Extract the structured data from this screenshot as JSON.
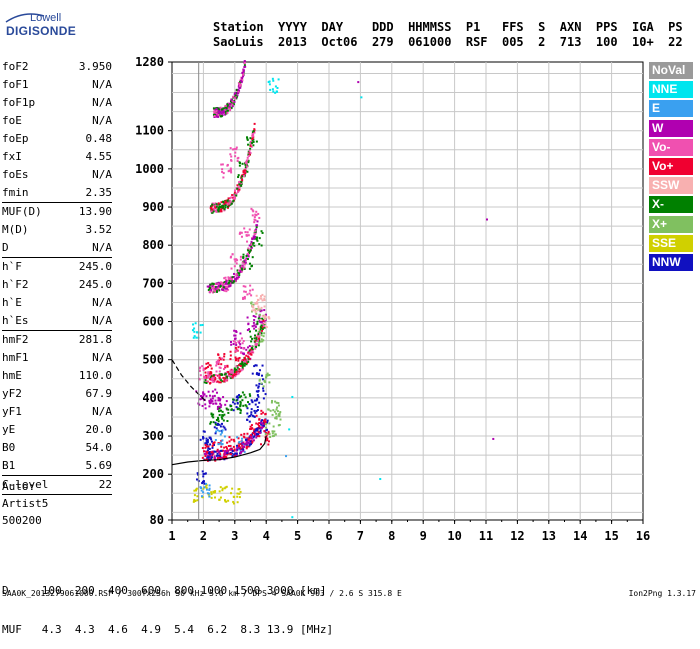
{
  "logo": {
    "line1": "Lowell",
    "line2": "DIGISONDE"
  },
  "header": {
    "cols": [
      "Station",
      "YYYY",
      "DAY",
      "DDD",
      "HHMMSS",
      "P1",
      "FFS",
      "S",
      "AXN",
      "PPS",
      "IGA",
      "PS"
    ],
    "vals": [
      "SaoLuis",
      "2013",
      "Oct06",
      "279",
      "061000",
      "RSF",
      "005",
      "2",
      "713",
      "100",
      "10+",
      "22"
    ]
  },
  "params": [
    {
      "name": "foF2",
      "value": "3.950"
    },
    {
      "name": "foF1",
      "value": "N/A"
    },
    {
      "name": "foF1p",
      "value": "N/A"
    },
    {
      "name": "foE",
      "value": "N/A"
    },
    {
      "name": "foEp",
      "value": "0.48"
    },
    {
      "name": "fxI",
      "value": "4.55"
    },
    {
      "name": "foEs",
      "value": "N/A"
    },
    {
      "name": "fmin",
      "value": "2.35"
    },
    {
      "sep": true
    },
    {
      "name": "MUF(D)",
      "value": "13.90"
    },
    {
      "name": "M(D)",
      "value": "3.52"
    },
    {
      "name": "D",
      "value": "N/A"
    },
    {
      "sep": true
    },
    {
      "name": "h`F",
      "value": "245.0"
    },
    {
      "name": "h`F2",
      "value": "245.0"
    },
    {
      "name": "h`E",
      "value": "N/A"
    },
    {
      "name": "h`Es",
      "value": "N/A"
    },
    {
      "sep": true
    },
    {
      "name": "hmF2",
      "value": "281.8"
    },
    {
      "name": "hmF1",
      "value": "N/A"
    },
    {
      "name": "hmE",
      "value": "110.0"
    },
    {
      "name": "yF2",
      "value": "67.9"
    },
    {
      "name": "yF1",
      "value": "N/A"
    },
    {
      "name": "yE",
      "value": "20.0"
    },
    {
      "name": "B0",
      "value": "54.0"
    },
    {
      "name": "B1",
      "value": "5.69"
    },
    {
      "sep": true
    },
    {
      "name": "C-level",
      "value": "22"
    },
    {
      "sep": true
    }
  ],
  "auto": {
    "line1": "Auto:",
    "line2": "Artist5",
    "line3": "500200"
  },
  "legend": [
    {
      "label": "NoVal",
      "color": "#9a9a9a"
    },
    {
      "label": "NNE",
      "color": "#00e5ee"
    },
    {
      "label": "E",
      "color": "#3aa0f0"
    },
    {
      "label": "W",
      "color": "#b000b0"
    },
    {
      "label": "Vo-",
      "color": "#f050b0"
    },
    {
      "label": "Vo+",
      "color": "#f00030"
    },
    {
      "label": "SSW",
      "color": "#f8b0b0"
    },
    {
      "label": "X-",
      "color": "#008000"
    },
    {
      "label": "X+",
      "color": "#80c060"
    },
    {
      "label": "SSE",
      "color": "#d0d000"
    },
    {
      "label": "NNW",
      "color": "#1010c0"
    }
  ],
  "bottom": {
    "line1": "D     100  200  400  600  800 1000 1500 3000 [km]",
    "line2": "MUF   4.3  4.3  4.6  4.9  5.4  6.2  8.3 13.9 [MHz]"
  },
  "footer": "SAA0K_2013279061000.RSF / 300fx256h 50 kHz 5.0 km / DPS-4 SAA0K 903 / 2.6 S 315.8 E",
  "version": "Ion2Png 1.3.17",
  "chart_data": {
    "type": "scatter",
    "title": "",
    "xlabel": "",
    "ylabel": "",
    "xlim": [
      1,
      16
    ],
    "ylim": [
      80,
      1280
    ],
    "x_ticks": [
      "1",
      "2",
      "3",
      "4",
      "5",
      "6",
      "7",
      "8",
      "9",
      "10",
      "11",
      "12",
      "13",
      "14",
      "15",
      "16"
    ],
    "y_ticks": [
      "80",
      "200",
      "300",
      "400",
      "500",
      "600",
      "700",
      "800",
      "900",
      "1000",
      "1100",
      "1280"
    ],
    "grid": true,
    "series": [
      {
        "legend": "NNW",
        "points": [
          [
            1.9,
            190
          ],
          [
            2.0,
            300
          ],
          [
            2.2,
            280
          ],
          [
            2.5,
            320
          ],
          [
            3.0,
            390
          ],
          [
            3.5,
            360
          ],
          [
            3.8,
            420
          ],
          [
            3.7,
            470
          ],
          [
            3.6,
            380
          ],
          [
            3.9,
            330
          ]
        ]
      },
      {
        "legend": "W",
        "points": [
          [
            1.9,
            400
          ],
          [
            2.1,
            395
          ],
          [
            2.3,
            405
          ],
          [
            2.6,
            388
          ],
          [
            3.0,
            560
          ],
          [
            3.3,
            520
          ],
          [
            3.5,
            600
          ],
          [
            3.8,
            620
          ],
          [
            11.0,
            870
          ],
          [
            11.2,
            295
          ],
          [
            6.9,
            1230
          ]
        ]
      },
      {
        "legend": "Vo+",
        "points": [
          [
            2.1,
            260
          ],
          [
            2.4,
            270
          ],
          [
            2.8,
            280
          ],
          [
            3.2,
            290
          ],
          [
            3.6,
            320
          ],
          [
            3.8,
            350
          ],
          [
            3.9,
            300
          ],
          [
            2.2,
            480
          ],
          [
            2.6,
            500
          ],
          [
            3.0,
            520
          ]
        ]
      },
      {
        "legend": "Vo-",
        "points": [
          [
            2.0,
            470
          ],
          [
            2.5,
            490
          ],
          [
            3.1,
            540
          ],
          [
            3.4,
            680
          ],
          [
            2.6,
            700
          ],
          [
            3.0,
            760
          ],
          [
            3.3,
            830
          ],
          [
            3.6,
            880
          ],
          [
            2.7,
            1000
          ],
          [
            3.0,
            1040
          ]
        ]
      },
      {
        "legend": "X-",
        "points": [
          [
            2.3,
            350
          ],
          [
            2.6,
            360
          ],
          [
            3.0,
            380
          ],
          [
            3.3,
            400
          ],
          [
            3.6,
            560
          ],
          [
            3.8,
            600
          ],
          [
            3.4,
            760
          ],
          [
            3.7,
            820
          ],
          [
            3.2,
            1000
          ],
          [
            3.5,
            1080
          ]
        ]
      },
      {
        "legend": "X+",
        "points": [
          [
            4.1,
            320
          ],
          [
            4.3,
            350
          ],
          [
            4.2,
            380
          ],
          [
            3.9,
            450
          ],
          [
            3.8,
            560
          ],
          [
            3.6,
            640
          ]
        ]
      },
      {
        "legend": "SSE",
        "points": [
          [
            1.8,
            150
          ],
          [
            2.2,
            160
          ],
          [
            2.6,
            150
          ],
          [
            3.0,
            145
          ]
        ]
      },
      {
        "legend": "NNE",
        "points": [
          [
            4.8,
            90
          ],
          [
            4.7,
            320
          ],
          [
            4.8,
            405
          ],
          [
            7.6,
            190
          ],
          [
            7.0,
            1190
          ],
          [
            4.2,
            1220
          ],
          [
            1.8,
            580
          ]
        ]
      },
      {
        "legend": "E",
        "points": [
          [
            2.0,
            160
          ],
          [
            2.5,
            300
          ],
          [
            3.2,
            280
          ],
          [
            4.6,
            250
          ]
        ]
      },
      {
        "legend": "SSW",
        "points": [
          [
            3.7,
            640
          ],
          [
            3.9,
            600
          ],
          [
            3.8,
            660
          ]
        ]
      }
    ],
    "profile_line": [
      [
        1.0,
        225
      ],
      [
        1.5,
        232
      ],
      [
        2.0,
        236
      ],
      [
        2.5,
        238
      ],
      [
        3.0,
        245
      ],
      [
        3.5,
        256
      ],
      [
        3.8,
        265
      ],
      [
        3.95,
        280
      ],
      [
        4.0,
        300
      ]
    ],
    "dashed_line": [
      [
        1.0,
        500
      ],
      [
        1.3,
        460
      ],
      [
        1.6,
        430
      ],
      [
        1.9,
        405
      ],
      [
        2.1,
        390
      ]
    ]
  }
}
